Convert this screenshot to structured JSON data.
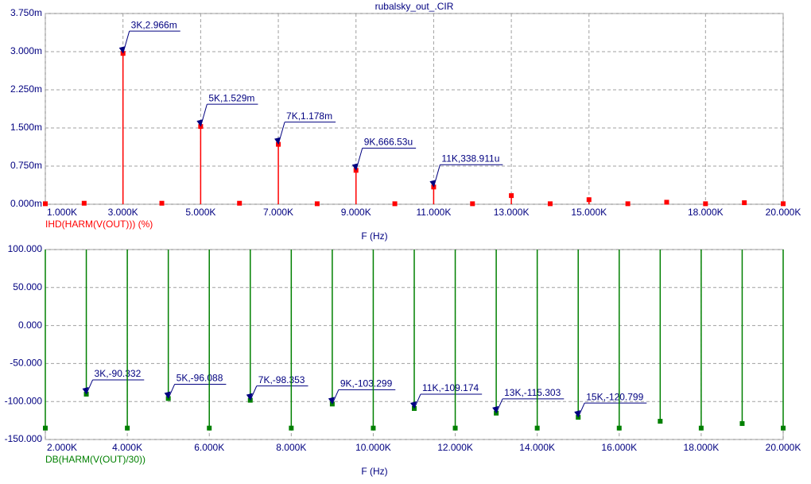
{
  "chart_data": [
    {
      "type": "stem",
      "title": "rubalsky_out_.CIR",
      "xlabel": "F (Hz)",
      "x": [
        1000,
        2000,
        3000,
        4000,
        5000,
        6000,
        7000,
        8000,
        9000,
        10000,
        11000,
        12000,
        13000,
        14000,
        15000,
        16000,
        17000,
        18000,
        19000,
        20000
      ],
      "series": [
        {
          "name": "IHD(HARM(V(OUT))) (%)",
          "color": "#ff0000",
          "values": [
            0.01,
            0.02,
            2.966,
            0.02,
            1.529,
            0.02,
            1.178,
            0.01,
            0.66653,
            0.01,
            0.338911,
            0.01,
            0.17,
            0.01,
            0.09,
            0.01,
            0.04,
            0.01,
            0.03,
            0.01
          ],
          "value_labels": [
            null,
            null,
            "3K,2.966m",
            null,
            "5K,1.529m",
            null,
            "7K,1.178m",
            null,
            "9K,666.53u",
            null,
            "11K,338.911u",
            null,
            null,
            null,
            null,
            null,
            null,
            null,
            null,
            null
          ]
        }
      ],
      "xlim": [
        1000,
        20000
      ],
      "xticks": [
        {
          "value": 1000,
          "label": "1.000K"
        },
        {
          "value": 3000,
          "label": "3.000K"
        },
        {
          "value": 5000,
          "label": "5.000K"
        },
        {
          "value": 7000,
          "label": "7.000K"
        },
        {
          "value": 9000,
          "label": "9.000K"
        },
        {
          "value": 11000,
          "label": "11.000K"
        },
        {
          "value": 13000,
          "label": "13.000K"
        },
        {
          "value": 15000,
          "label": "15.000K"
        },
        {
          "value": 18000,
          "label": "18.000K"
        },
        {
          "value": 20000,
          "label": "20.000K"
        }
      ],
      "ylim": [
        0,
        3.75
      ],
      "yticks": [
        {
          "value": 0,
          "label": "0.000m"
        },
        {
          "value": 0.75,
          "label": "0.750m"
        },
        {
          "value": 1.5,
          "label": "1.500m"
        },
        {
          "value": 2.25,
          "label": "2.250m"
        },
        {
          "value": 3,
          "label": "3.000m"
        },
        {
          "value": 3.75,
          "label": "3.750m"
        }
      ],
      "grid": true
    },
    {
      "type": "stem",
      "xlabel": "F (Hz)",
      "x": [
        2000,
        3000,
        4000,
        5000,
        6000,
        7000,
        8000,
        9000,
        10000,
        11000,
        12000,
        13000,
        14000,
        15000,
        16000,
        17000,
        18000,
        19000,
        20000
      ],
      "series": [
        {
          "name": "DB(HARM(V(OUT)/30))",
          "color": "#008000",
          "values": [
            -135,
            -90.332,
            -135,
            -96.088,
            -135,
            -98.353,
            -135,
            -103.299,
            -135,
            -109.174,
            -135,
            -115.303,
            -135,
            -120.799,
            -135,
            -126,
            -135,
            -129,
            -135
          ],
          "value_labels": [
            null,
            "3K,-90.332",
            null,
            "5K,-96.088",
            null,
            "7K,-98.353",
            null,
            "9K,-103.299",
            null,
            "11K,-109.174",
            null,
            "13K,-115.303",
            null,
            "15K,-120.799",
            null,
            null,
            null,
            null,
            null
          ]
        }
      ],
      "xlim": [
        2000,
        20000
      ],
      "xticks": [
        {
          "value": 2000,
          "label": "2.000K"
        },
        {
          "value": 4000,
          "label": "4.000K"
        },
        {
          "value": 6000,
          "label": "6.000K"
        },
        {
          "value": 8000,
          "label": "8.000K"
        },
        {
          "value": 10000,
          "label": "10.000K"
        },
        {
          "value": 12000,
          "label": "12.000K"
        },
        {
          "value": 14000,
          "label": "14.000K"
        },
        {
          "value": 16000,
          "label": "16.000K"
        },
        {
          "value": 18000,
          "label": "18.000K"
        },
        {
          "value": 20000,
          "label": "20.000K"
        }
      ],
      "ylim": [
        -150,
        100
      ],
      "yticks": [
        {
          "value": -150,
          "label": "-150.000"
        },
        {
          "value": -100,
          "label": "-100.000"
        },
        {
          "value": -50,
          "label": "-50.000"
        },
        {
          "value": 0,
          "label": "0.000"
        },
        {
          "value": 50,
          "label": "50.000"
        },
        {
          "value": 100,
          "label": "100.000"
        }
      ],
      "grid": true
    }
  ]
}
